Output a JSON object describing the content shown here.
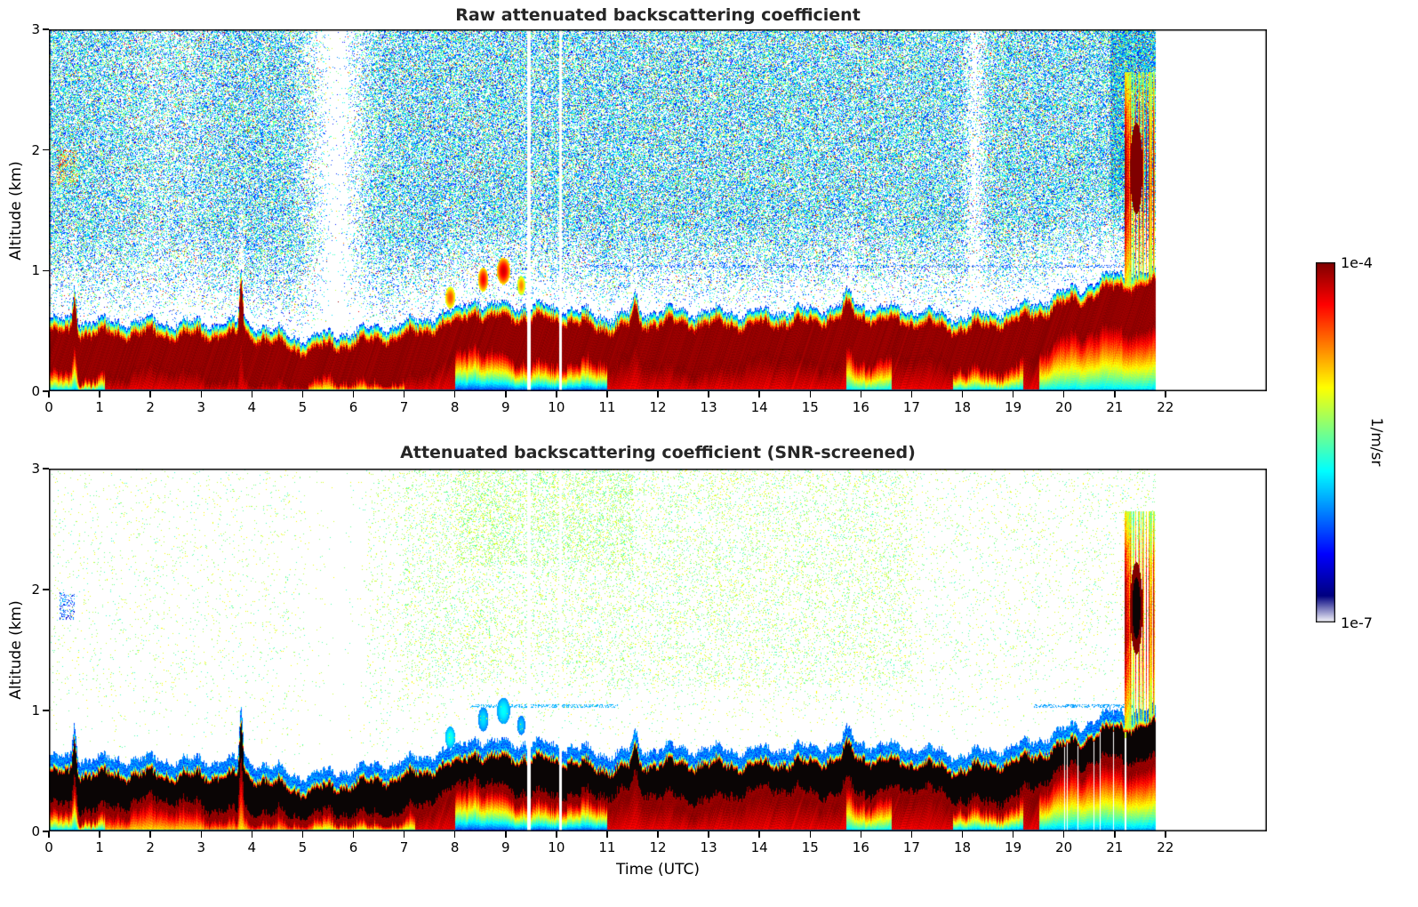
{
  "figure": {
    "background": "#ffffff",
    "frame_color": "#000000",
    "colorbar": {
      "max_label": "1e-4",
      "min_label": "1e-7",
      "unit": "1/m/sr"
    }
  },
  "panels": [
    {
      "title": "Raw attenuated backscattering coefficient",
      "ylabel": "Altitude (km)",
      "xticks": [
        "0",
        "1",
        "2",
        "3",
        "4",
        "5",
        "6",
        "7",
        "8",
        "9",
        "10",
        "11",
        "12",
        "13",
        "14",
        "15",
        "16",
        "17",
        "18",
        "19",
        "20",
        "21",
        "22"
      ],
      "yticks": [
        "0",
        "1",
        "2",
        "3"
      ]
    },
    {
      "title": "Attenuated backscattering coefficient (SNR-screened)",
      "ylabel": "Altitude (km)",
      "xlabel": "Time (UTC)",
      "xticks": [
        "0",
        "1",
        "2",
        "3",
        "4",
        "5",
        "6",
        "7",
        "8",
        "9",
        "10",
        "11",
        "12",
        "13",
        "14",
        "15",
        "16",
        "17",
        "18",
        "19",
        "20",
        "21",
        "22"
      ],
      "yticks": [
        "0",
        "1",
        "2",
        "3"
      ]
    }
  ],
  "chart_data": [
    {
      "type": "heatmap",
      "title": "Raw attenuated backscattering coefficient",
      "xlabel": "Time (UTC)",
      "ylabel": "Altitude (km)",
      "x_range": [
        0,
        24
      ],
      "data_end_hour": 21.8,
      "y_range": [
        0,
        3
      ],
      "colormap": "jet",
      "color_scale": {
        "type": "log",
        "vmin": 1e-07,
        "vmax": 0.0001,
        "unit": "1/m/sr"
      },
      "boundary_layer": {
        "hours": [
          0,
          1,
          2,
          3,
          4,
          5,
          6,
          7,
          8,
          9,
          10,
          11,
          12,
          13,
          14,
          15,
          16,
          17,
          18,
          19,
          20,
          21,
          22
        ],
        "top_km": [
          0.47,
          0.46,
          0.46,
          0.45,
          0.44,
          0.32,
          0.38,
          0.44,
          0.55,
          0.6,
          0.58,
          0.5,
          0.55,
          0.54,
          0.54,
          0.56,
          0.6,
          0.55,
          0.5,
          0.56,
          0.7,
          0.85,
          0.88
        ]
      },
      "spikes": [
        {
          "t": 0.5,
          "dh": 0.3,
          "w": 0.05
        },
        {
          "t": 3.78,
          "dh": 0.45,
          "w": 0.045
        },
        {
          "t": 8.35,
          "dh": 0.08,
          "w": 0.2
        },
        {
          "t": 11.55,
          "dh": 0.14,
          "w": 0.07
        },
        {
          "t": 15.75,
          "dh": 0.1,
          "w": 0.12
        }
      ],
      "elevated_plumes": [
        {
          "t": 7.9,
          "y": 0.78,
          "rt": 0.1,
          "ry": 0.09,
          "u": 0.8
        },
        {
          "t": 8.55,
          "y": 0.93,
          "rt": 0.1,
          "ry": 0.1,
          "u": 0.88
        },
        {
          "t": 8.95,
          "y": 1.0,
          "rt": 0.13,
          "ry": 0.11,
          "u": 0.92
        },
        {
          "t": 9.3,
          "y": 0.88,
          "rt": 0.08,
          "ry": 0.08,
          "u": 0.75
        }
      ],
      "rain_plume": {
        "t0": 21.18,
        "t1": 21.78,
        "y_top": 2.65,
        "core": {
          "t": 21.42,
          "y": 1.85,
          "rt": 0.12,
          "ry": 0.38
        }
      },
      "render": {
        "noise_density": 0.55,
        "palette": "raw",
        "fringe_w": 0.12,
        "black_core": false,
        "dips": [
          {
            "t": 5.65,
            "sigma": 0.6,
            "depth": 0.97
          },
          {
            "t": 18.25,
            "sigma": 0.22,
            "depth": 0.75
          },
          {
            "t": 2.3,
            "sigma": 0.9,
            "depth": 0.3
          }
        ],
        "boosts": [
          {
            "t0": 20.9,
            "t1": 21.8,
            "y0": 0.8,
            "y1": 3,
            "f": 1.6
          }
        ],
        "surface": [
          {
            "t0": 0,
            "t1": 1.1,
            "u": 0.25
          },
          {
            "t0": 5.1,
            "t1": 7.0,
            "u": 0.5
          },
          {
            "t0": 8.0,
            "t1": 11.0,
            "u": 0.12
          },
          {
            "t0": 15.7,
            "t1": 16.6,
            "u": 0.3
          },
          {
            "t0": 17.8,
            "t1": 19.2,
            "u": 0.25
          },
          {
            "t0": 19.5,
            "t1": 21.85,
            "u": 0.3
          }
        ],
        "hlines": [
          {
            "y": 1.04,
            "t0": 10.5,
            "t1": 21.3,
            "p": 0.22,
            "u": 0.2
          }
        ],
        "clusters": [
          {
            "t0": 0.15,
            "t1": 0.55,
            "y0": 1.7,
            "y1": 2.0,
            "p": 0.3,
            "u0": 0.4,
            "du": 0.5
          }
        ],
        "gaps": [
          {
            "t": 9.45,
            "w": 0.03
          },
          {
            "t": 10.07,
            "w": 0.03
          }
        ]
      },
      "features": [
        "dense blue/cyan photon-noise speckle above the aerosol layer",
        "clear noise gap near 5-6.5 UTC and a narrow one near 18.2 UTC",
        "strong aerosol boundary layer (dark red) between ~0.15 and ~0.6 km",
        "layer rises after 19 UTC reaching ~0.9 km",
        "precipitation/virga plume 21.2-21.8 UTC extending to ~2.6 km",
        "data end at ~21.8 UTC"
      ]
    },
    {
      "type": "heatmap",
      "title": "Attenuated backscattering coefficient (SNR-screened)",
      "xlabel": "Time (UTC)",
      "ylabel": "Altitude (km)",
      "x_range": [
        0,
        24
      ],
      "data_end_hour": 21.8,
      "y_range": [
        0,
        3
      ],
      "colormap": "jet",
      "color_scale": {
        "type": "log",
        "vmin": 1e-07,
        "vmax": 0.0001,
        "unit": "1/m/sr"
      },
      "boundary_layer": {
        "hours": [
          0,
          1,
          2,
          3,
          4,
          5,
          6,
          7,
          8,
          9,
          10,
          11,
          12,
          13,
          14,
          15,
          16,
          17,
          18,
          19,
          20,
          21,
          22
        ],
        "top_km": [
          0.47,
          0.46,
          0.46,
          0.45,
          0.44,
          0.32,
          0.38,
          0.44,
          0.55,
          0.6,
          0.58,
          0.5,
          0.55,
          0.54,
          0.54,
          0.56,
          0.6,
          0.55,
          0.5,
          0.56,
          0.7,
          0.85,
          0.88
        ]
      },
      "spikes": [
        {
          "t": 0.5,
          "dh": 0.3,
          "w": 0.05
        },
        {
          "t": 3.78,
          "dh": 0.45,
          "w": 0.045
        },
        {
          "t": 8.35,
          "dh": 0.08,
          "w": 0.2
        },
        {
          "t": 11.55,
          "dh": 0.14,
          "w": 0.07
        },
        {
          "t": 15.75,
          "dh": 0.1,
          "w": 0.12
        }
      ],
      "elevated_plumes": [
        {
          "t": 7.9,
          "y": 0.78,
          "rt": 0.1,
          "ry": 0.09,
          "u": 0.4
        },
        {
          "t": 8.55,
          "y": 0.93,
          "rt": 0.1,
          "ry": 0.1,
          "u": 0.35
        },
        {
          "t": 8.95,
          "y": 1.0,
          "rt": 0.13,
          "ry": 0.11,
          "u": 0.38
        },
        {
          "t": 9.3,
          "y": 0.88,
          "rt": 0.08,
          "ry": 0.08,
          "u": 0.33
        }
      ],
      "rain_plume": {
        "t0": 21.18,
        "t1": 21.78,
        "y_top": 2.65,
        "core": {
          "t": 21.42,
          "y": 1.85,
          "rt": 0.12,
          "ry": 0.38
        }
      },
      "render": {
        "noise_density": 0.05,
        "palette": "screened",
        "fringe_w": 0.06,
        "blue_band": 0.08,
        "black_core": true,
        "dips": [
          {
            "t": 5.65,
            "sigma": 0.6,
            "depth": 0.8
          }
        ],
        "boosts": [
          {
            "t0": 0,
            "t1": 6.3,
            "y0": 0,
            "y1": 3,
            "f": 0.45
          },
          {
            "t0": 7,
            "t1": 17,
            "y0": 1.2,
            "y1": 3,
            "f": 2.0
          },
          {
            "t0": 8,
            "t1": 11.5,
            "y0": 2.2,
            "y1": 3,
            "f": 2.0
          },
          {
            "t0": 17,
            "t1": 21.1,
            "y0": 0,
            "y1": 3,
            "f": 0.7
          }
        ],
        "surface": [
          {
            "t0": 0,
            "t1": 1.1,
            "u": 0.25
          },
          {
            "t0": 1.1,
            "t1": 5.2,
            "u": 0.6
          },
          {
            "t0": 5.2,
            "t1": 7.2,
            "u": 0.45
          },
          {
            "t0": 8.0,
            "t1": 11.0,
            "u": 0.12
          },
          {
            "t0": 15.7,
            "t1": 16.6,
            "u": 0.3
          },
          {
            "t0": 17.8,
            "t1": 19.2,
            "u": 0.2
          },
          {
            "t0": 19.5,
            "t1": 21.85,
            "u": 0.25
          }
        ],
        "hlines": [
          {
            "y": 1.04,
            "t0": 8.3,
            "t1": 11.2,
            "p": 0.4,
            "u": 0.3
          },
          {
            "y": 1.04,
            "t0": 19.4,
            "t1": 21.35,
            "p": 0.45,
            "u": 0.28
          }
        ],
        "clusters": [
          {
            "t0": 0.2,
            "t1": 0.5,
            "y0": 1.75,
            "y1": 1.98,
            "p": 0.25,
            "u0": 0.05,
            "du": 0.3
          }
        ],
        "gaps": [
          {
            "t": 9.45,
            "w": 0.03
          },
          {
            "t": 10.07,
            "w": 0.03
          }
        ],
        "striations": {
          "t0": 19.95,
          "t1": 21.25,
          "p": 0.13
        }
      },
      "features": [
        "noise above the layer removed by SNR screening; only sparse cyan/green residual speckle (densest 7-17 UTC above 1.5 km)",
        "saturated layer core rendered black between ~0.2 and ~0.6 km",
        "blue sub-layer signal down to the surface, darkest 8-11 UTC",
        "rising layer after 19 UTC with white data striations 20-21.2 UTC",
        "precipitation/virga plume 21.2-21.8 UTC extending to ~2.6 km"
      ]
    }
  ]
}
